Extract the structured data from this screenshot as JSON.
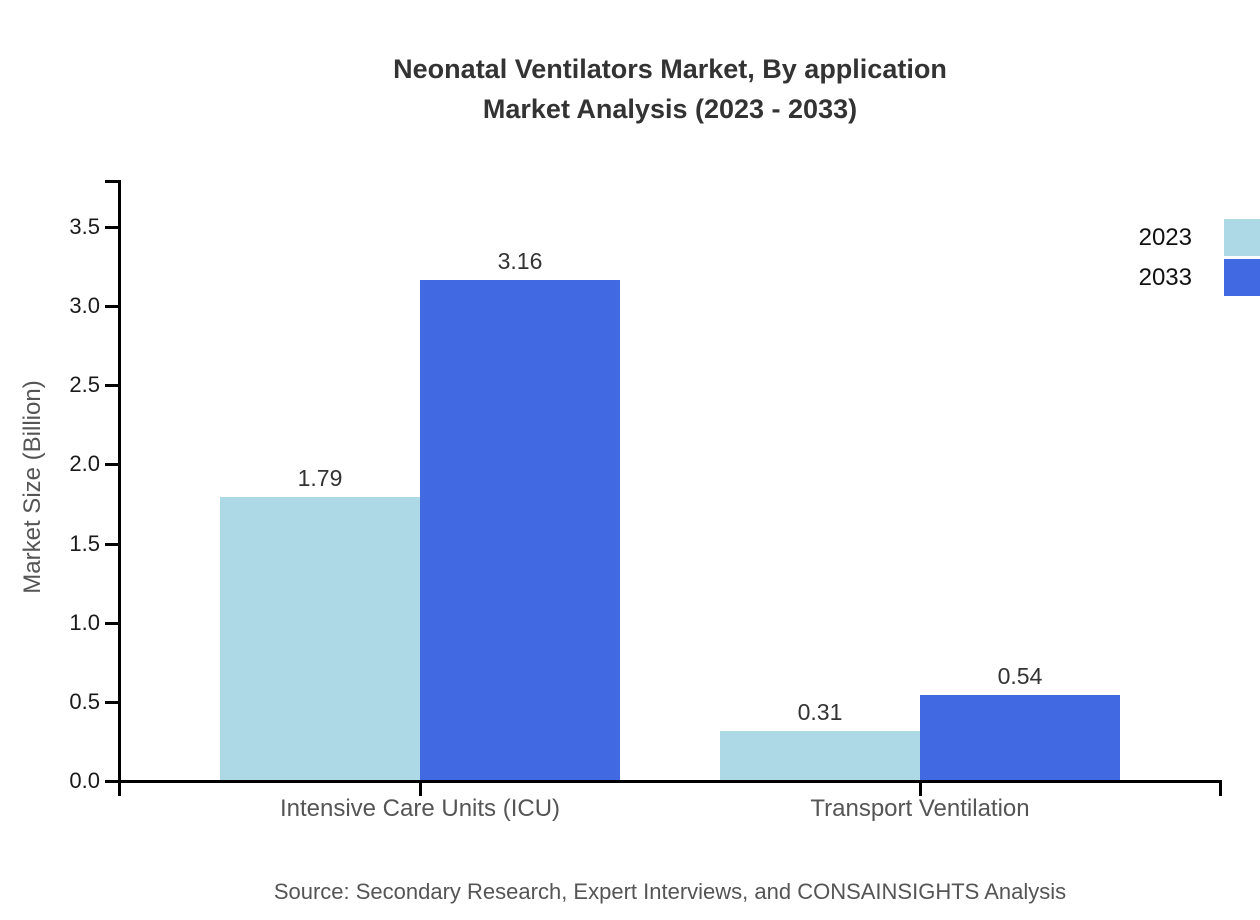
{
  "header": {
    "title_line1": "Neonatal Ventilators Market, By application",
    "title_line2": "Market Analysis (2023 - 2033)"
  },
  "footer": {
    "source": "Source: Secondary Research, Expert Interviews, and CONSAINSIGHTS Analysis"
  },
  "colors": {
    "series_2023": "#ADD8E6",
    "series_2033": "#4169E1",
    "title_text": "#333333",
    "axis_text": "#1a1a1a",
    "muted_text": "#555555",
    "axis_line": "#000000"
  },
  "chart_data": {
    "type": "bar",
    "title": "Neonatal Ventilators Market, By application Market Analysis (2023 - 2033)",
    "categories": [
      "Intensive Care Units (ICU)",
      "Transport Ventilation"
    ],
    "series": [
      {
        "name": "2023",
        "color": "#ADD8E6",
        "values": [
          1.79,
          0.31
        ]
      },
      {
        "name": "2033",
        "color": "#4169E1",
        "values": [
          3.16,
          0.54
        ]
      }
    ],
    "value_labels": [
      "1.79",
      "3.16",
      "0.31",
      "0.54"
    ],
    "xlabel": "",
    "ylabel": "Market Size (Billion)",
    "ylim": [
      0,
      3.7
    ],
    "yticks": [
      0.0,
      0.5,
      1.0,
      1.5,
      2.0,
      2.5,
      3.0,
      3.5
    ],
    "grid": false,
    "legend_position": "top-right",
    "source": "Source: Secondary Research, Expert Interviews, and CONSAINSIGHTS Analysis"
  }
}
